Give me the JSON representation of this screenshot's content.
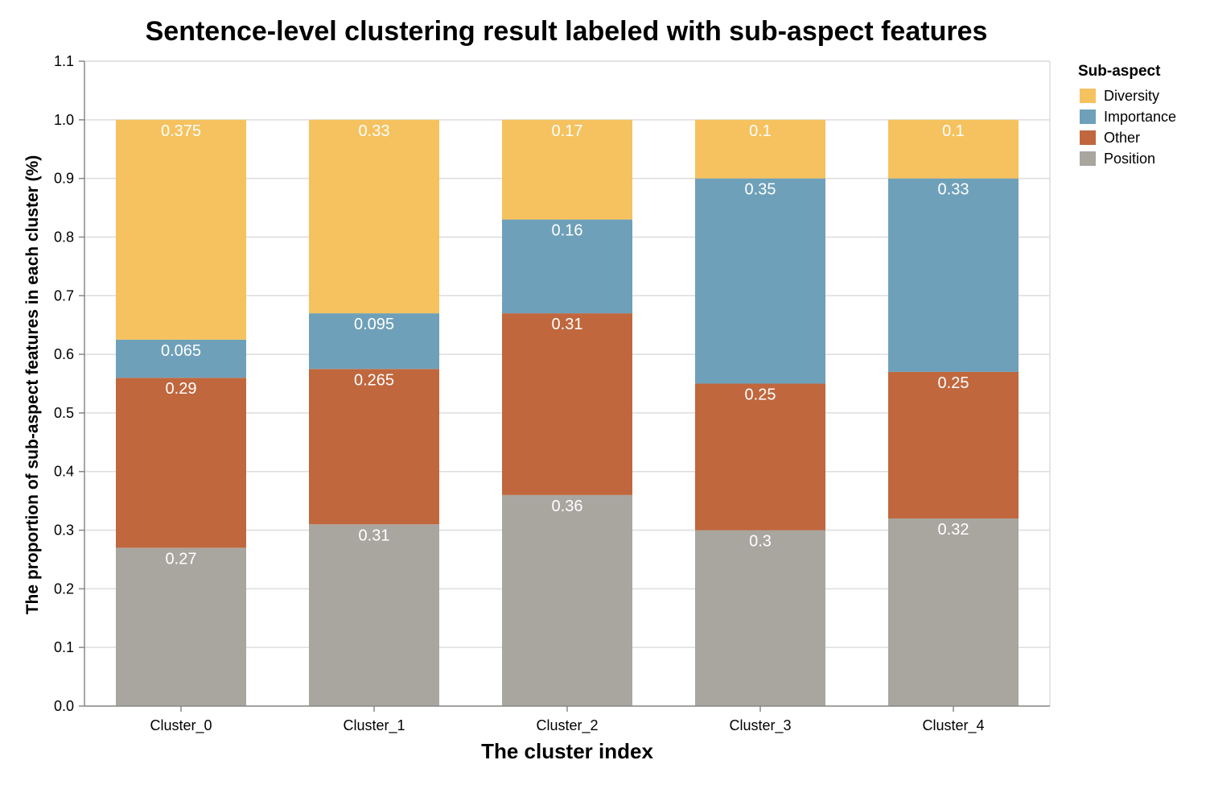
{
  "chart_data": {
    "type": "bar",
    "stacked": true,
    "title": "Sentence-level clustering result labeled with sub-aspect features",
    "xlabel": "The cluster index",
    "ylabel": "The proportion of sub-aspect features in each cluster (%)",
    "ylim": [
      0,
      1.1
    ],
    "yticks": [
      "0.0",
      "0.1",
      "0.2",
      "0.3",
      "0.4",
      "0.5",
      "0.6",
      "0.7",
      "0.8",
      "0.9",
      "1.0",
      "1.1"
    ],
    "grid": true,
    "categories": [
      "Cluster_0",
      "Cluster_1",
      "Cluster_2",
      "Cluster_3",
      "Cluster_4"
    ],
    "legend": {
      "title": "Sub-aspect",
      "placement": "right"
    },
    "series": [
      {
        "name": "Position",
        "color": "#a9a6a0",
        "values": [
          0.27,
          0.31,
          0.36,
          0.3,
          0.32
        ],
        "labels": [
          "0.27",
          "0.31",
          "0.36",
          "0.3",
          "0.32"
        ]
      },
      {
        "name": "Other",
        "color": "#c0673e",
        "values": [
          0.29,
          0.265,
          0.31,
          0.25,
          0.25
        ],
        "labels": [
          "0.29",
          "0.265",
          "0.31",
          "0.25",
          "0.25"
        ]
      },
      {
        "name": "Importance",
        "color": "#6fa0b9",
        "values": [
          0.065,
          0.095,
          0.16,
          0.35,
          0.33
        ],
        "labels": [
          "0.065",
          "0.095",
          "0.16",
          "0.35",
          "0.33"
        ]
      },
      {
        "name": "Diversity",
        "color": "#f5c25f",
        "values": [
          0.375,
          0.33,
          0.17,
          0.1,
          0.1
        ],
        "labels": [
          "0.375",
          "0.33",
          "0.17",
          "0.1",
          "0.1"
        ]
      }
    ],
    "legend_order": [
      "Diversity",
      "Importance",
      "Other",
      "Position"
    ]
  }
}
